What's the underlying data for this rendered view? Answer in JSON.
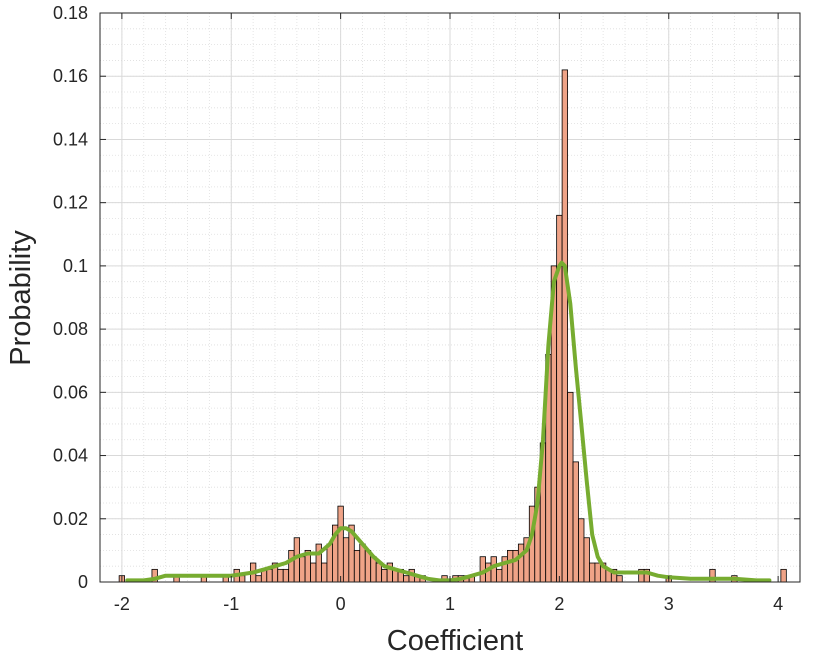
{
  "chart_data": {
    "type": "bar",
    "xlabel": "Coefficient",
    "ylabel": "Probability",
    "xlim": [
      -2.2,
      4.2
    ],
    "ylim": [
      0,
      0.18
    ],
    "xticks": [
      -2,
      -1,
      0,
      1,
      2,
      3,
      4
    ],
    "xtick_labels": [
      "-2",
      "-1",
      "0",
      "1",
      "2",
      "3",
      "4"
    ],
    "yticks": [
      0,
      0.02,
      0.04,
      0.06,
      0.08,
      0.1,
      0.12,
      0.14,
      0.16,
      0.18
    ],
    "ytick_labels": [
      "0",
      "0.02",
      "0.04",
      "0.06",
      "0.08",
      "0.1",
      "0.12",
      "0.14",
      "0.16",
      "0.18"
    ],
    "grid": true,
    "minor_grid": true,
    "bin_width": 0.05,
    "histogram": [
      {
        "x": -2.0,
        "y": 0.002
      },
      {
        "x": -1.7,
        "y": 0.004
      },
      {
        "x": -1.5,
        "y": 0.002
      },
      {
        "x": -1.25,
        "y": 0.002
      },
      {
        "x": -1.05,
        "y": 0.002
      },
      {
        "x": -0.95,
        "y": 0.004
      },
      {
        "x": -0.9,
        "y": 0.002
      },
      {
        "x": -0.8,
        "y": 0.006
      },
      {
        "x": -0.75,
        "y": 0.002
      },
      {
        "x": -0.7,
        "y": 0.004
      },
      {
        "x": -0.65,
        "y": 0.004
      },
      {
        "x": -0.6,
        "y": 0.006
      },
      {
        "x": -0.55,
        "y": 0.004
      },
      {
        "x": -0.5,
        "y": 0.004
      },
      {
        "x": -0.45,
        "y": 0.01
      },
      {
        "x": -0.4,
        "y": 0.014
      },
      {
        "x": -0.35,
        "y": 0.008
      },
      {
        "x": -0.3,
        "y": 0.01
      },
      {
        "x": -0.25,
        "y": 0.006
      },
      {
        "x": -0.2,
        "y": 0.012
      },
      {
        "x": -0.15,
        "y": 0.006
      },
      {
        "x": -0.1,
        "y": 0.012
      },
      {
        "x": -0.05,
        "y": 0.018
      },
      {
        "x": 0.0,
        "y": 0.024
      },
      {
        "x": 0.05,
        "y": 0.014
      },
      {
        "x": 0.1,
        "y": 0.018
      },
      {
        "x": 0.15,
        "y": 0.01
      },
      {
        "x": 0.2,
        "y": 0.012
      },
      {
        "x": 0.25,
        "y": 0.01
      },
      {
        "x": 0.3,
        "y": 0.008
      },
      {
        "x": 0.35,
        "y": 0.006
      },
      {
        "x": 0.4,
        "y": 0.004
      },
      {
        "x": 0.45,
        "y": 0.006
      },
      {
        "x": 0.5,
        "y": 0.004
      },
      {
        "x": 0.55,
        "y": 0.004
      },
      {
        "x": 0.6,
        "y": 0.002
      },
      {
        "x": 0.65,
        "y": 0.004
      },
      {
        "x": 0.7,
        "y": 0.002
      },
      {
        "x": 0.75,
        "y": 0.002
      },
      {
        "x": 0.95,
        "y": 0.002
      },
      {
        "x": 1.05,
        "y": 0.002
      },
      {
        "x": 1.1,
        "y": 0.002
      },
      {
        "x": 1.15,
        "y": 0.002
      },
      {
        "x": 1.2,
        "y": 0.002
      },
      {
        "x": 1.3,
        "y": 0.008
      },
      {
        "x": 1.35,
        "y": 0.006
      },
      {
        "x": 1.4,
        "y": 0.008
      },
      {
        "x": 1.45,
        "y": 0.004
      },
      {
        "x": 1.5,
        "y": 0.008
      },
      {
        "x": 1.55,
        "y": 0.01
      },
      {
        "x": 1.6,
        "y": 0.01
      },
      {
        "x": 1.65,
        "y": 0.012
      },
      {
        "x": 1.7,
        "y": 0.014
      },
      {
        "x": 1.75,
        "y": 0.024
      },
      {
        "x": 1.8,
        "y": 0.03
      },
      {
        "x": 1.85,
        "y": 0.044
      },
      {
        "x": 1.9,
        "y": 0.072
      },
      {
        "x": 1.95,
        "y": 0.1
      },
      {
        "x": 2.0,
        "y": 0.116
      },
      {
        "x": 2.05,
        "y": 0.162
      },
      {
        "x": 2.1,
        "y": 0.06
      },
      {
        "x": 2.15,
        "y": 0.038
      },
      {
        "x": 2.2,
        "y": 0.02
      },
      {
        "x": 2.25,
        "y": 0.014
      },
      {
        "x": 2.3,
        "y": 0.006
      },
      {
        "x": 2.35,
        "y": 0.006
      },
      {
        "x": 2.4,
        "y": 0.006
      },
      {
        "x": 2.45,
        "y": 0.004
      },
      {
        "x": 2.5,
        "y": 0.004
      },
      {
        "x": 2.55,
        "y": 0.002
      },
      {
        "x": 2.75,
        "y": 0.004
      },
      {
        "x": 2.8,
        "y": 0.004
      },
      {
        "x": 3.0,
        "y": 0.002
      },
      {
        "x": 3.4,
        "y": 0.004
      },
      {
        "x": 3.6,
        "y": 0.002
      },
      {
        "x": 4.05,
        "y": 0.004
      }
    ],
    "density_curve": {
      "x": [
        -1.95,
        -1.8,
        -1.7,
        -1.6,
        -1.5,
        -1.4,
        -1.3,
        -1.2,
        -1.1,
        -1.0,
        -0.9,
        -0.8,
        -0.7,
        -0.6,
        -0.5,
        -0.4,
        -0.3,
        -0.2,
        -0.1,
        -0.05,
        0.0,
        0.05,
        0.1,
        0.15,
        0.2,
        0.3,
        0.4,
        0.5,
        0.6,
        0.7,
        0.8,
        0.9,
        1.0,
        1.1,
        1.2,
        1.3,
        1.4,
        1.5,
        1.6,
        1.7,
        1.75,
        1.8,
        1.85,
        1.9,
        1.95,
        2.0,
        2.02,
        2.05,
        2.1,
        2.15,
        2.2,
        2.25,
        2.3,
        2.35,
        2.4,
        2.5,
        2.6,
        2.7,
        2.8,
        2.9,
        3.0,
        3.2,
        3.4,
        3.6,
        3.8,
        3.92
      ],
      "y": [
        0.0005,
        0.0005,
        0.001,
        0.002,
        0.002,
        0.002,
        0.002,
        0.002,
        0.002,
        0.002,
        0.0025,
        0.003,
        0.004,
        0.005,
        0.006,
        0.008,
        0.009,
        0.009,
        0.012,
        0.015,
        0.017,
        0.017,
        0.016,
        0.014,
        0.012,
        0.008,
        0.005,
        0.004,
        0.003,
        0.002,
        0.001,
        0.0005,
        0.0005,
        0.001,
        0.002,
        0.003,
        0.005,
        0.006,
        0.007,
        0.01,
        0.015,
        0.025,
        0.045,
        0.075,
        0.095,
        0.1,
        0.101,
        0.1,
        0.088,
        0.068,
        0.05,
        0.032,
        0.015,
        0.008,
        0.005,
        0.003,
        0.003,
        0.003,
        0.003,
        0.002,
        0.0015,
        0.001,
        0.001,
        0.001,
        0.0005,
        0.0005
      ]
    },
    "colors": {
      "bar_fill": "#efa387",
      "bar_edge": "#000000",
      "curve": "#77ac30",
      "grid": "#dedede",
      "axis": "#262626"
    }
  }
}
